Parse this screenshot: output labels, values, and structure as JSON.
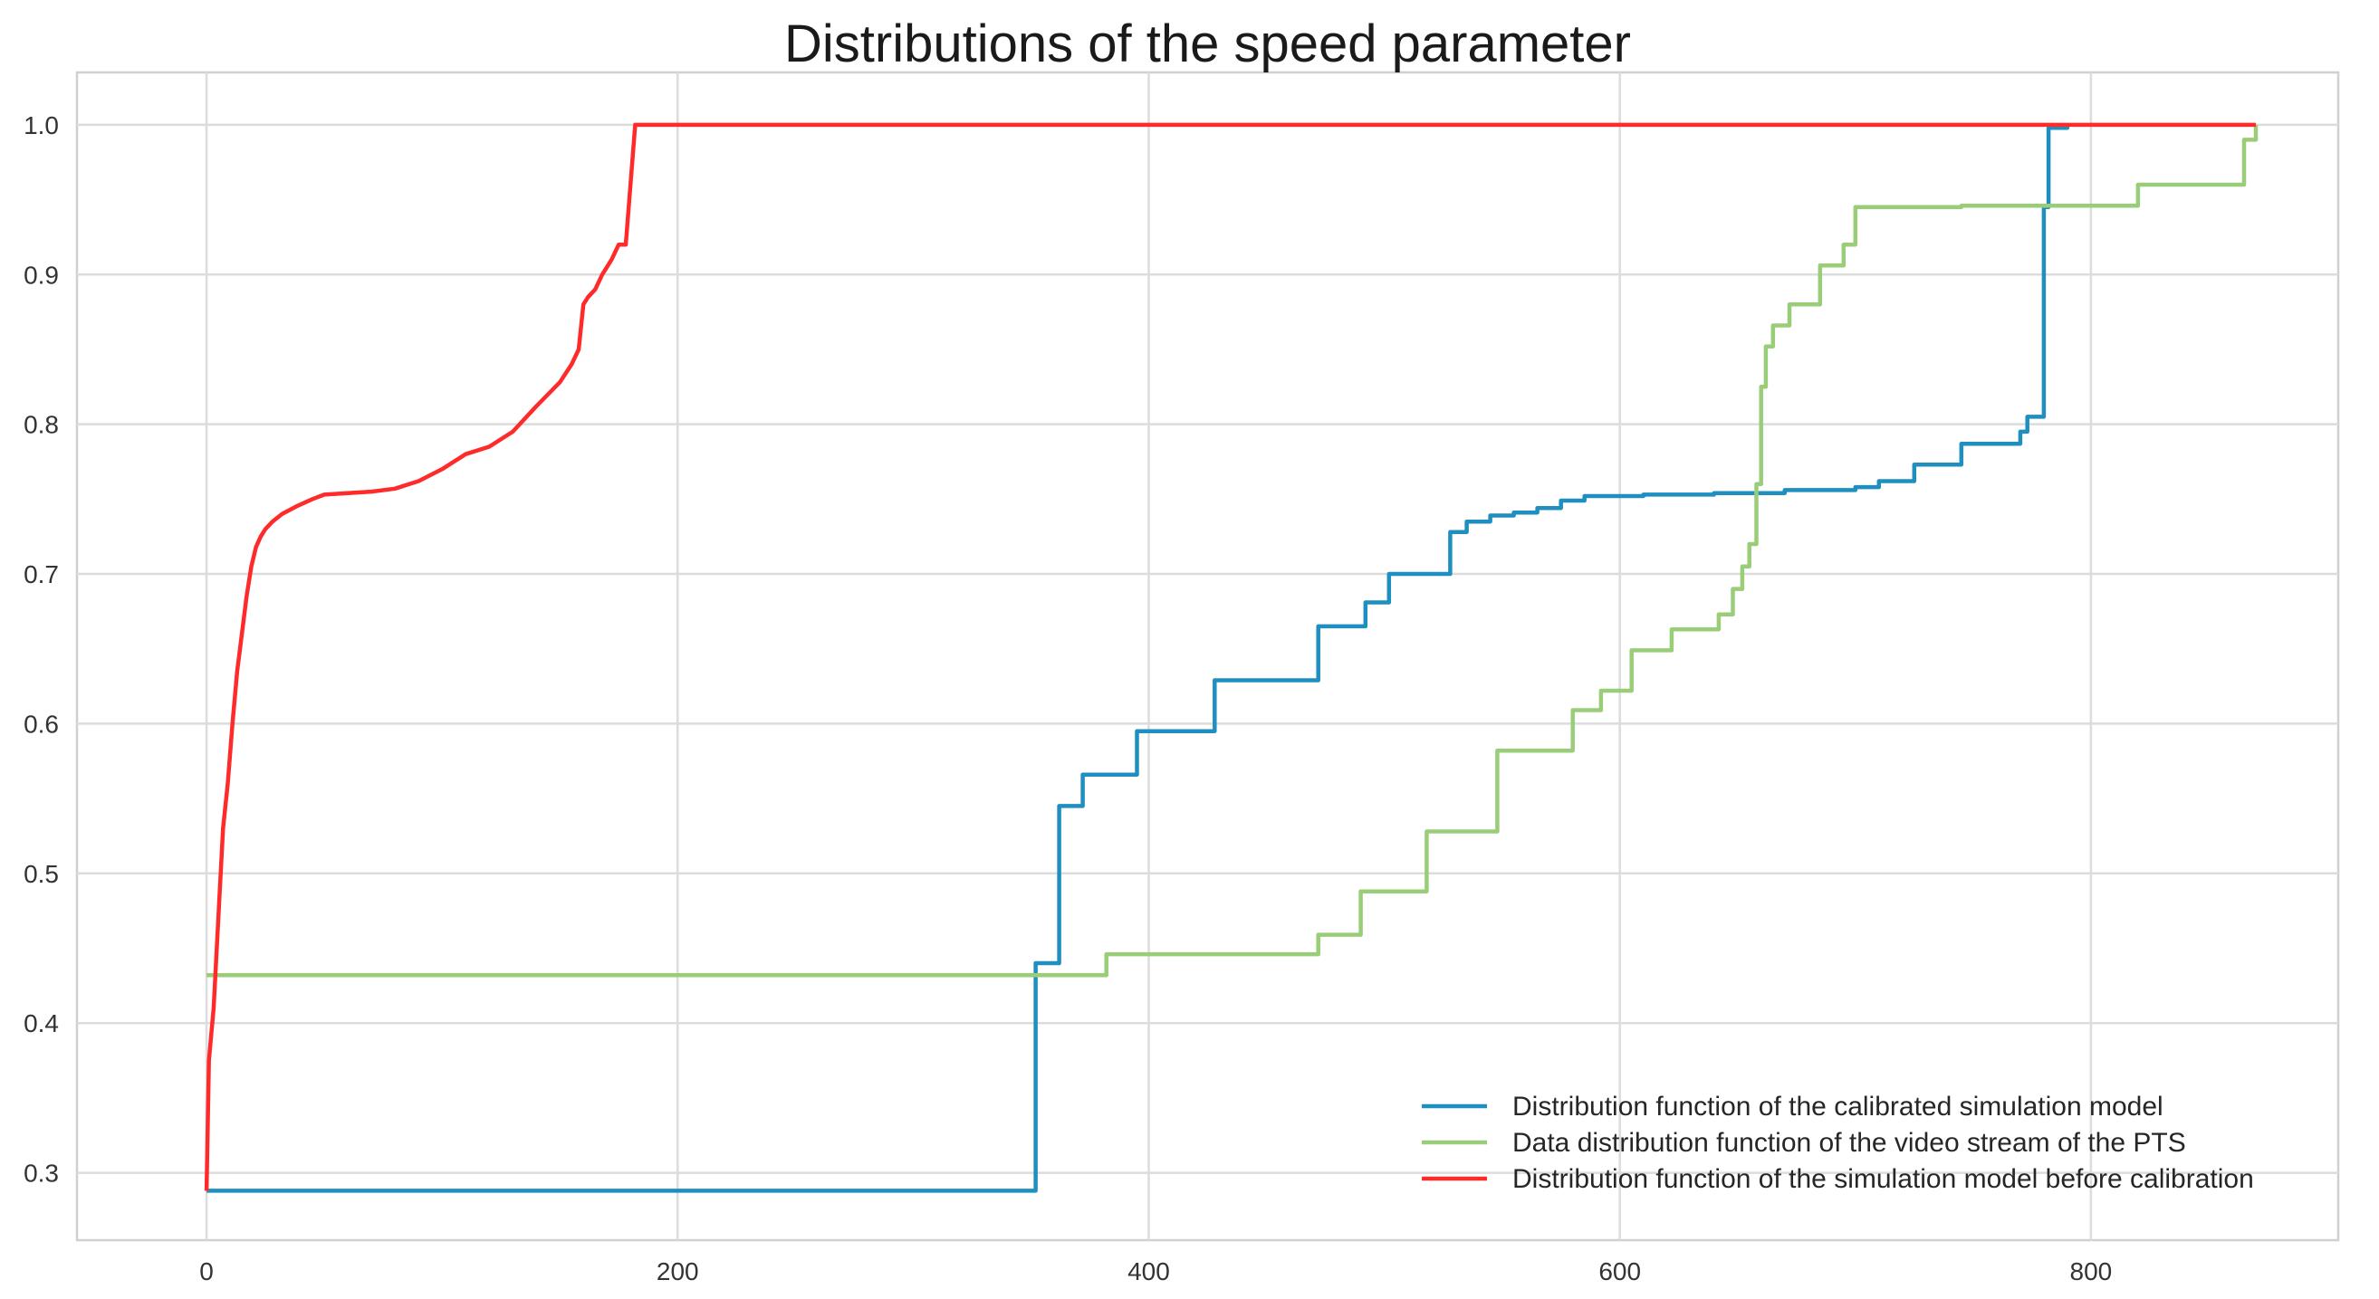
{
  "chart_data": {
    "type": "line",
    "title": "Distributions of the speed parameter",
    "xlabel": "",
    "ylabel": "",
    "xlim": [
      -55,
      905
    ],
    "ylim": [
      0.255,
      1.035
    ],
    "xticks": [
      0,
      200,
      400,
      600,
      800
    ],
    "yticks": [
      0.3,
      0.4,
      0.5,
      0.6,
      0.7,
      0.8,
      0.9,
      1.0
    ],
    "xtick_labels": [
      "0",
      "200",
      "400",
      "600",
      "800"
    ],
    "ytick_labels": [
      "0.3",
      "0.4",
      "0.5",
      "0.6",
      "0.7",
      "0.8",
      "0.9",
      "1.0"
    ],
    "grid": true,
    "legend_position": "bottom-right",
    "series": [
      {
        "name": "Distribution function of the calibrated simulation model",
        "color": "#1f8fbf",
        "step": true,
        "x": [
          0,
          350,
          352,
          360,
          362,
          372,
          395,
          428,
          472,
          492,
          502,
          528,
          535,
          545,
          555,
          565,
          575,
          585,
          610,
          640,
          670,
          700,
          710,
          725,
          745,
          770,
          773,
          780,
          782,
          790
        ],
        "y": [
          0.288,
          0.288,
          0.44,
          0.44,
          0.545,
          0.566,
          0.595,
          0.629,
          0.665,
          0.681,
          0.7,
          0.728,
          0.735,
          0.739,
          0.741,
          0.744,
          0.749,
          0.752,
          0.753,
          0.754,
          0.756,
          0.758,
          0.762,
          0.773,
          0.787,
          0.795,
          0.805,
          0.945,
          0.998,
          0.999
        ]
      },
      {
        "name": "Data distribution function of the video stream of the PTS",
        "color": "#9acd78",
        "step": true,
        "x": [
          0,
          350,
          382,
          472,
          490,
          518,
          548,
          580,
          592,
          605,
          622,
          642,
          648,
          652,
          655,
          658,
          660,
          662,
          665,
          668,
          672,
          685,
          695,
          700,
          745,
          820,
          865,
          870
        ],
        "y": [
          0.432,
          0.432,
          0.446,
          0.459,
          0.488,
          0.528,
          0.582,
          0.609,
          0.622,
          0.649,
          0.663,
          0.673,
          0.69,
          0.705,
          0.72,
          0.76,
          0.825,
          0.852,
          0.866,
          0.866,
          0.88,
          0.906,
          0.92,
          0.945,
          0.946,
          0.96,
          0.99,
          1.0
        ]
      },
      {
        "name": "Distribution function of the simulation model before calibration",
        "color": "#ff2a2a",
        "step": false,
        "x": [
          0,
          1,
          3,
          5,
          7,
          9,
          11,
          13,
          15,
          17,
          19,
          21,
          23,
          25,
          28,
          32,
          38,
          45,
          50,
          60,
          70,
          80,
          90,
          100,
          110,
          120,
          130,
          140,
          145,
          150,
          155,
          158,
          160,
          162,
          165,
          168,
          172,
          175,
          178,
          180,
          182,
          185,
          200,
          300,
          600,
          870
        ],
        "y": [
          0.288,
          0.375,
          0.41,
          0.47,
          0.53,
          0.56,
          0.6,
          0.635,
          0.66,
          0.685,
          0.705,
          0.718,
          0.725,
          0.73,
          0.735,
          0.74,
          0.745,
          0.75,
          0.753,
          0.754,
          0.755,
          0.757,
          0.762,
          0.77,
          0.78,
          0.785,
          0.795,
          0.812,
          0.82,
          0.828,
          0.84,
          0.85,
          0.88,
          0.885,
          0.89,
          0.9,
          0.91,
          0.92,
          0.92,
          0.96,
          1.0,
          1.0,
          1.0,
          1.0,
          1.0,
          1.0
        ]
      }
    ]
  }
}
